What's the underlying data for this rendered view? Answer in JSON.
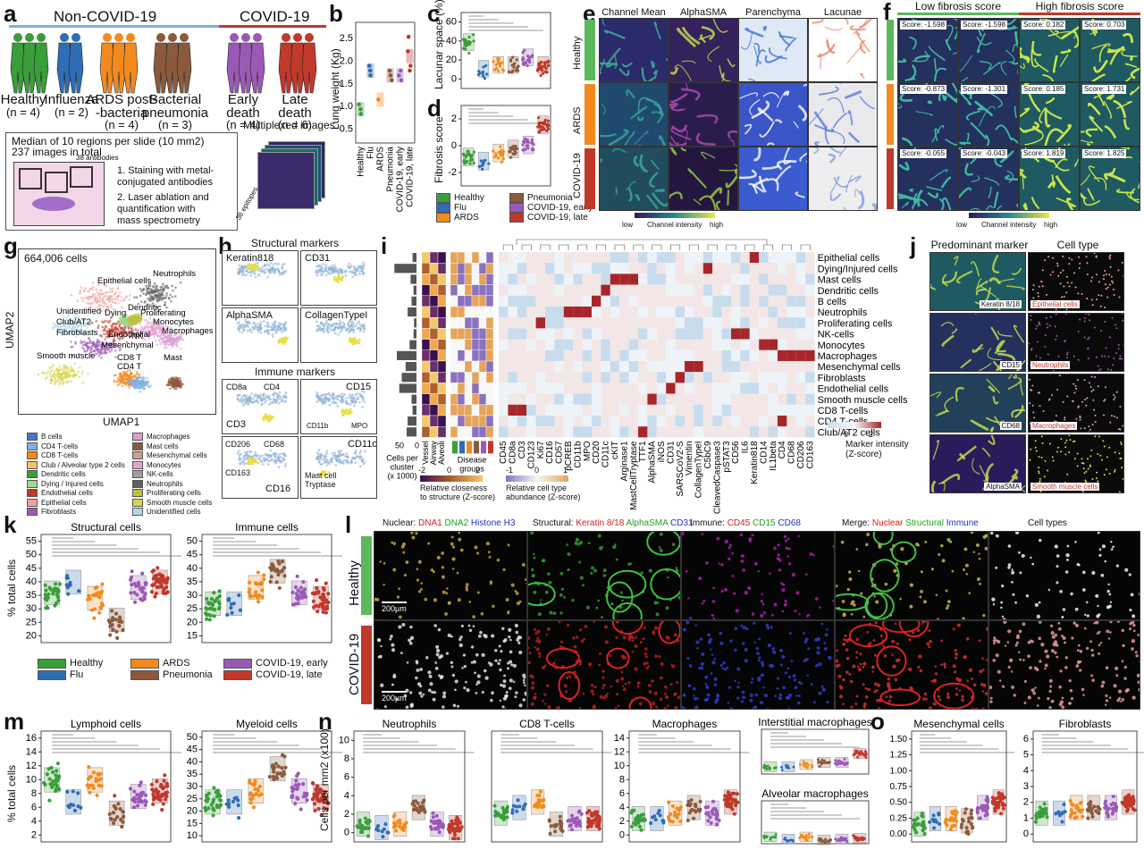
{
  "panels": {
    "a": {
      "letter": "a",
      "group_non_covid": "Non-COVID-19",
      "group_covid": "COVID-19",
      "cohorts": [
        {
          "name": "Healthy",
          "n": "(n = 4)",
          "color": "#3a9e3a"
        },
        {
          "name": "Influenza",
          "n": "(n = 2)",
          "color": "#2f6db5"
        },
        {
          "name": "ARDS post-\n-bacteria",
          "n": "(n = 4)",
          "color": "#f28a1e"
        },
        {
          "name": "Bacterial\npneumonia",
          "n": "(n = 3)",
          "color": "#8b5a3c"
        },
        {
          "name": "Early\ndeath",
          "n": "(n = 4)",
          "color": "#9b59b6"
        },
        {
          "name": "Late\ndeath",
          "n": "(n = 6)",
          "color": "#c0392b"
        }
      ],
      "box_line1": "Median of 10 regions per slide (10 mm2)",
      "box_line2": "237 images in total",
      "antibodies": "38 antibodies",
      "epitopes": "38 epitopes",
      "step1": "1. Staining with metal-\nconjugated antibodies",
      "step2": "2. Laser ablation and\nquantification with\nmass spectrometry",
      "multiplexed": "Multiplexed images"
    },
    "b": {
      "letter": "b",
      "ylabel": "Lung weight (Kg)",
      "yticks": [
        "0.5",
        "1.0",
        "1.5",
        "2.0",
        "2.5"
      ],
      "xlabels": [
        "Healthy",
        "Flu",
        "ARDS",
        "Pneumonia",
        "COVID-19, early",
        "COVID-19, late"
      ]
    },
    "c": {
      "letter": "c",
      "ylabel": "Lacunar space (%)",
      "yticks": [
        "0",
        "20",
        "40",
        "60"
      ]
    },
    "d": {
      "letter": "d",
      "ylabel": "Fibrosis score",
      "yticks": [
        "-2",
        "0",
        "2"
      ]
    },
    "legend_bcd": [
      {
        "label": "Healthy",
        "color": "#3a9e3a"
      },
      {
        "label": "Pneumonia",
        "color": "#8b5a3c"
      },
      {
        "label": "Flu",
        "color": "#2f6db5"
      },
      {
        "label": "COVID-19, early",
        "color": "#9b59b6"
      },
      {
        "label": "ARDS",
        "color": "#f28a1e"
      },
      {
        "label": "COVID-19, late",
        "color": "#c0392b"
      }
    ],
    "e": {
      "letter": "e",
      "cols": [
        "Channel Mean",
        "AlphaSMA",
        "Parenchyma",
        "Lacunae"
      ],
      "rows": [
        "Healthy",
        "ARDS",
        "COVID-19"
      ],
      "cbar_low": "low",
      "cbar_mid": "Channel intensity",
      "cbar_high": "high"
    },
    "f": {
      "letter": "f",
      "low": "Low fibrosis score",
      "high": "High fibrosis score",
      "scores": [
        [
          "Score: -1.598",
          "Score: -1.598",
          "Score: 0.182",
          "Score: 0.703"
        ],
        [
          "Score: -0.873",
          "Score: -1.301",
          "Score: 0.185",
          "Score: 1.731"
        ],
        [
          "Score: -0.055",
          "Score: -0.043",
          "Score: 1.819",
          "Score: 1.825"
        ]
      ],
      "cbar_low": "low",
      "cbar_mid": "Channel intensity",
      "cbar_high": "high"
    },
    "g": {
      "letter": "g",
      "cells": "664,006 cells",
      "xlabel": "UMAP1",
      "ylabel": "UMAP2",
      "clusters": [
        "Epithelial cells",
        "Neutrophils",
        "Dendritic",
        "Unidentified",
        "Proliferating",
        "Dying",
        "Monocytes",
        "Club/AT2",
        "Macrophages",
        "Fibroblasts",
        "Endothelial",
        "NK",
        "Mesenchymal",
        "Smooth muscle",
        "CD8 T",
        "Mast",
        "CD4 T"
      ]
    },
    "legend_g": [
      {
        "label": "B cells",
        "color": "#4a74c9"
      },
      {
        "label": "Macrophages",
        "color": "#d9a0d6"
      },
      {
        "label": "CD4 T-cells",
        "color": "#7fb0e0"
      },
      {
        "label": "Mast cells",
        "color": "#8b5a3c"
      },
      {
        "label": "CD8 T-cells",
        "color": "#f28a1e"
      },
      {
        "label": "Mesenchymal cells",
        "color": "#c9a08a"
      },
      {
        "label": "Club / Alveolar type 2 cells",
        "color": "#f5c26b"
      },
      {
        "label": "Monocytes",
        "color": "#e6a3d0"
      },
      {
        "label": "Dendritic cells",
        "color": "#3a9e3a"
      },
      {
        "label": "NK-cells",
        "color": "#a0a0a0"
      },
      {
        "label": "Dying / Injured cells",
        "color": "#9fd98a"
      },
      {
        "label": "Neutrophils",
        "color": "#606060"
      },
      {
        "label": "Endothelial cells",
        "color": "#c0392b"
      },
      {
        "label": "Proliferating cells",
        "color": "#bfbf40"
      },
      {
        "label": "Epithelial cells",
        "color": "#f4a0a0"
      },
      {
        "label": "Smooth muscle cells",
        "color": "#d6d64a"
      },
      {
        "label": "Fibroblasts",
        "color": "#9b59b6"
      },
      {
        "label": "Unidentified cells",
        "color": "#b0d8e8"
      }
    ],
    "h": {
      "letter": "h",
      "structural": "Structural markers",
      "immune": "Immune markers",
      "markers": [
        "Keratin818",
        "CD31",
        "AlphaSMA",
        "CollagenTypeI"
      ],
      "immune_labels": [
        "CD8a",
        "CD4",
        "CD3",
        "CD15",
        "CD11b",
        "MPO",
        "CD206",
        "CD68",
        "CD163",
        "CD16",
        "CD11c",
        "Mast cell\nTryptase"
      ]
    },
    "i": {
      "letter": "i",
      "rows": [
        "Epithelial cells",
        "Dying/Injured cells",
        "Mast cells",
        "Dendritic cells",
        "B cells",
        "Neutrophils",
        "Proliferating cells",
        "NK-cells",
        "Monocytes",
        "Macrophages",
        "Mesenchymal cells",
        "Fibroblasts",
        "Endothelial cells",
        "Smooth muscle cells",
        "CD8 T-cells",
        "CD4 T-cells",
        "Club/AT2 cells"
      ],
      "cols": [
        "CD45",
        "CD8a",
        "CD3",
        "CD123",
        "Ki67",
        "CD16",
        "CD57",
        "pCREB",
        "CD11b",
        "MPO",
        "CD20",
        "CD11c",
        "cKIT",
        "Arginase1",
        "MastCellTryptase",
        "TTF1",
        "AlphaSMA",
        "iNOS",
        "CD31",
        "SARSCoV2-S",
        "Vimentin",
        "CollagenTypeI",
        "C5bC9",
        "CleavedCaspase3",
        "pSTAT3",
        "CD56",
        "IL6",
        "Keratin818",
        "CD14",
        "IL1beta",
        "CD4",
        "CD68",
        "CD206",
        "CD163"
      ],
      "struct_cols": [
        "Vessel",
        "Airway",
        "Alveoli"
      ],
      "bar_label": "Cells per\ncluster\n(x 1000)",
      "bar_ticks": [
        "50",
        "0"
      ],
      "disease_groups": "Disease\ngroups",
      "cbar1_label": "Relative closeness\nto structure (Z-score)",
      "cbar1_ticks": [
        "-2",
        "0",
        "2"
      ],
      "cbar2_label": "Relative cell type\nabundance (Z-score)",
      "cbar2_ticks": [
        "-1",
        "0",
        "1"
      ],
      "cbar3_label": "Marker intensity\n(Z-score)",
      "cbar3_ticks": [
        "0",
        "2"
      ]
    },
    "j": {
      "letter": "j",
      "col1": "Predominant marker",
      "col2": "Cell type",
      "markers": [
        "Keratin 8/18",
        "CD15",
        "CD68",
        "AlphaSMA"
      ],
      "types": [
        "Epithelial cells",
        "Neutrophils",
        "Macrophages",
        "Smooth muscle cells"
      ]
    },
    "k": {
      "letter": "k",
      "title1": "Structural cells",
      "title2": "Immune cells",
      "ylabel": "% total cells",
      "yticks1": [
        "20",
        "25",
        "30",
        "35",
        "40",
        "45",
        "50",
        "55"
      ],
      "yticks2": [
        "15",
        "20",
        "25",
        "30",
        "35",
        "40",
        "45",
        "50"
      ]
    },
    "legend_k": [
      {
        "label": "Healthy",
        "color": "#3a9e3a"
      },
      {
        "label": "ARDS",
        "color": "#f28a1e"
      },
      {
        "label": "COVID-19, early",
        "color": "#9b59b6"
      },
      {
        "label": "Flu",
        "color": "#2f6db5"
      },
      {
        "label": "Pneumonia",
        "color": "#8b5a3c"
      },
      {
        "label": "COVID-19, late",
        "color": "#c0392b"
      }
    ],
    "l": {
      "letter": "l",
      "nuclear": "Nuclear:",
      "dna1": "DNA1",
      "dna2": "DNA2",
      "histone": "Histone H3",
      "structural": "Structural:",
      "ker": "Keratin 8/18",
      "asma": "AlphaSMA",
      "cd31": "CD31",
      "immune": "Immune:",
      "cd45": "CD45",
      "cd15": "CD15",
      "cd68": "CD68",
      "merge": "Merge:",
      "m_nuc": "Nuclear",
      "m_str": "Structural",
      "m_imm": "Immune",
      "celltypes": "Cell types",
      "rows": [
        "Healthy",
        "COVID-19"
      ],
      "scale": "200µm"
    },
    "m": {
      "letter": "m",
      "title1": "Lymphoid cells",
      "title2": "Myeloid cells",
      "ylabel": "% total cells",
      "yticks1": [
        "2",
        "4",
        "6",
        "8",
        "10",
        "12",
        "14",
        "16"
      ],
      "yticks2": [
        "10",
        "15",
        "20",
        "25",
        "30",
        "35",
        "40",
        "45",
        "50"
      ]
    },
    "n": {
      "letter": "n",
      "ylabel": "Cells per mm2 (x100)",
      "titles": [
        "Neutrophils",
        "CD8 T-cells",
        "Macrophages",
        "Interstitial macrophages",
        "Alveolar macrophages"
      ],
      "yticks_neu": [
        "0",
        "2",
        "4",
        "6",
        "8",
        "10"
      ],
      "yticks_mac": [
        "0",
        "2",
        "4",
        "6",
        "8",
        "10",
        "12",
        "14"
      ]
    },
    "o": {
      "letter": "o",
      "titles": [
        "Mesenchymal cells",
        "Fibroblasts"
      ],
      "yticks1": [
        "0.00",
        "0.25",
        "0.50",
        "0.75",
        "1.00",
        "1.25",
        "1.50"
      ],
      "yticks2": [
        "0",
        "1",
        "2",
        "3",
        "4",
        "5",
        "6"
      ]
    }
  }
}
